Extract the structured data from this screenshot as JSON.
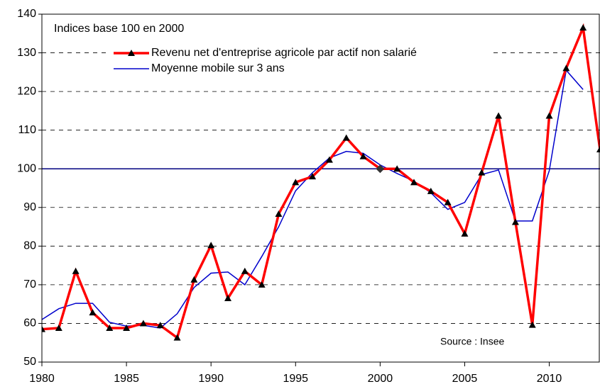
{
  "chart_data": {
    "type": "line",
    "annotations": [
      "Indices base 100 en 2000",
      "Source : Insee"
    ],
    "x": [
      1980,
      1981,
      1982,
      1983,
      1984,
      1985,
      1986,
      1987,
      1988,
      1989,
      1990,
      1991,
      1992,
      1993,
      1994,
      1995,
      1996,
      1997,
      1998,
      1999,
      2000,
      2001,
      2002,
      2003,
      2004,
      2005,
      2006,
      2007,
      2008,
      2009,
      2010,
      2011,
      2012,
      2013
    ],
    "series": [
      {
        "name": "Revenu net d'entreprise agricole par actif non salarié",
        "color": "#ff0000",
        "marker": "triangle",
        "values": [
          58.5,
          58.8,
          73.5,
          62.8,
          58.8,
          58.8,
          60,
          59.5,
          56.3,
          71.3,
          80.2,
          66.5,
          73.5,
          70,
          88.3,
          96.5,
          98,
          102.3,
          108,
          103.2,
          100,
          100,
          96.5,
          94.2,
          91.3,
          83.2,
          99,
          113.7,
          86.2,
          59.6,
          113.7,
          126,
          136.5,
          105
        ]
      },
      {
        "name": "Moyenne mobile sur 3 ans",
        "color": "#0000cc",
        "values": [
          61,
          63.8,
          65.2,
          65.2,
          60.3,
          59.3,
          59.5,
          58.8,
          62.5,
          69.3,
          73,
          73.3,
          70,
          77.3,
          85,
          94.3,
          99,
          102.8,
          104.5,
          104,
          101,
          98.8,
          96.8,
          93.8,
          89.5,
          91.3,
          98.5,
          99.7,
          86.5,
          86.5,
          99.5,
          125.5,
          120.5,
          null
        ]
      }
    ],
    "highlight": {
      "x": 2000,
      "marker": "diamond"
    },
    "reference_line": {
      "value": 100,
      "color": "#000080"
    },
    "xlim": [
      1980,
      2013
    ],
    "xticks": [
      1980,
      1985,
      1990,
      1995,
      2000,
      2005,
      2010
    ],
    "ylim": [
      50,
      140
    ],
    "yticks": [
      50,
      60,
      70,
      80,
      90,
      100,
      110,
      120,
      130,
      140
    ],
    "grid": true
  }
}
